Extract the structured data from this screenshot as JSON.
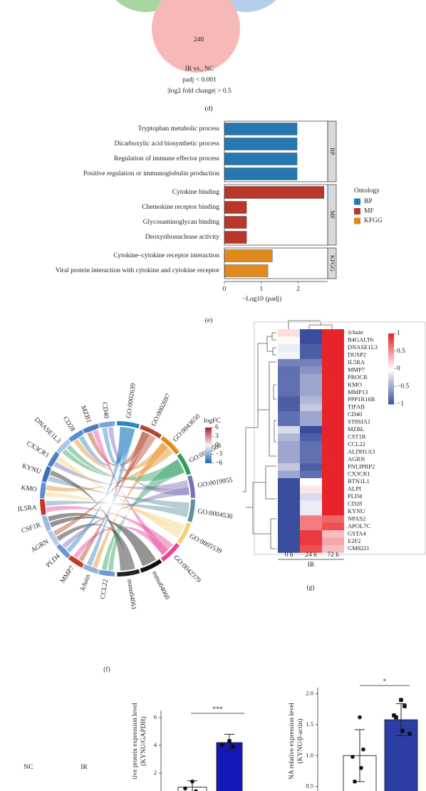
{
  "chart_data": [
    {
      "type": "venn",
      "values": [
        240
      ],
      "notes": [
        "IR vs., NC",
        "padj < 0.001",
        "|log2 fold change| > 0.5"
      ],
      "panel_label": "(d)"
    },
    {
      "type": "bar",
      "orientation": "horizontal",
      "categories": [
        "Tryptophan metabolic process",
        "Dicarboxylic acid biosynthetic process",
        "Regulation of immune effector process",
        "Positive regulation or immunoglobulin production",
        "Cytokine binding",
        "Chemokine receptor binding",
        "Glycosaminoglycan binding",
        "Deoxyribonuclease activity",
        "Cytokine–cytokine receptor interaction",
        "Viral protein interaction with cytokine and cytokine receptor"
      ],
      "groups": [
        "BP",
        "BP",
        "BP",
        "BP",
        "MF",
        "MF",
        "MF",
        "MF",
        "KFGG",
        "KFGG"
      ],
      "values": [
        1.97,
        1.97,
        1.97,
        1.97,
        2.7,
        0.6,
        0.6,
        0.6,
        1.3,
        1.18
      ],
      "legend": {
        "title": "Ontology",
        "items": [
          {
            "name": "BP",
            "color": "#2678b2"
          },
          {
            "name": "MF",
            "color": "#b8362a"
          },
          {
            "name": "KFGG",
            "color": "#e08a1e"
          }
        ]
      },
      "xlabel": "−Log10 (padj)",
      "xlim": [
        0,
        2.8
      ],
      "xticks": [
        0,
        1,
        2
      ],
      "panel_label": "(e)"
    },
    {
      "type": "chord",
      "genes": [
        {
          "name": "CD40",
          "color": "#7aa6d6"
        },
        {
          "name": "MZB1",
          "color": "#4a7fc1"
        },
        {
          "name": "CD28",
          "color": "#5b8fd0"
        },
        {
          "name": "DNASE1L3",
          "color": "#a9c4e6"
        },
        {
          "name": "CX3CR1",
          "color": "#4f7fc0"
        },
        {
          "name": "KYNU",
          "color": "#3d6fb5"
        },
        {
          "name": "KMO",
          "color": "#5e90cf"
        },
        {
          "name": "IL5RA",
          "color": "#c0392b"
        },
        {
          "name": "CSF1R",
          "color": "#9dbbe2"
        },
        {
          "name": "AGRN",
          "color": "#b5cbe8"
        },
        {
          "name": "PLD4",
          "color": "#6c98d2"
        },
        {
          "name": "MMP7",
          "color": "#c23b2e"
        },
        {
          "name": "Jchain",
          "color": "#8fb2de"
        },
        {
          "name": "CCL22",
          "color": "#6e9ad3"
        }
      ],
      "terms": [
        {
          "name": "GO:0002639",
          "color": "#2e86c1"
        },
        {
          "name": "GO:0002697",
          "color": "#b3472f"
        },
        {
          "name": "GO:0043650",
          "color": "#e68a1c"
        },
        {
          "name": "GO:0006568",
          "color": "#2f9e5f"
        },
        {
          "name": "GO:0019955",
          "color": "#7b6fb5"
        },
        {
          "name": "GO:0004536",
          "color": "#5d8f9f"
        },
        {
          "name": "GO:0005539",
          "color": "#f3d27a"
        },
        {
          "name": "GO:0042379",
          "color": "#e8479a"
        },
        {
          "name": "mmu04060",
          "color": "#111111"
        },
        {
          "name": "mmu04061",
          "color": "#222222"
        }
      ],
      "legend": {
        "title": "logFC",
        "ticks": [
          6,
          3,
          0,
          {
            "value": -3,
            "label": "−3"
          },
          {
            "value": -6,
            "label": "−6"
          }
        ]
      },
      "panel_label": "(f)"
    },
    {
      "type": "heatmap",
      "rows": [
        "Jchain",
        "B4GALT6",
        "DNASE1L3",
        "DUSP2",
        "IL5RA",
        "MMP7",
        "PROCR",
        "KMO",
        "MMP13",
        "PPP1R16B",
        "TIFAB",
        "CD40",
        "ST8SIA1",
        "MZBL",
        "CST1R",
        "CCL22",
        "ALDH1A3",
        "AGRN",
        "PNLIPRP2",
        "CX3CR1",
        "BTN1L1",
        "ALPI",
        "PLD4",
        "CD28",
        "KYNU",
        "NPAS2",
        "APOL7C",
        "GSTA4",
        "E2F2",
        "GM8221"
      ],
      "columns": [
        "0 h",
        "24 h",
        "72 h"
      ],
      "column_group": "IR",
      "values": [
        [
          0.15,
          -1,
          1
        ],
        [
          0.02,
          -1,
          1
        ],
        [
          -0.1,
          -0.9,
          1
        ],
        [
          -0.05,
          -0.9,
          1
        ],
        [
          -0.7,
          -0.7,
          1
        ],
        [
          -0.8,
          -0.6,
          1
        ],
        [
          -0.8,
          -0.5,
          1
        ],
        [
          -0.8,
          -0.5,
          1
        ],
        [
          -0.8,
          -0.5,
          1
        ],
        [
          -0.9,
          -0.4,
          1
        ],
        [
          -0.9,
          -0.3,
          1
        ],
        [
          -0.8,
          -0.5,
          1
        ],
        [
          -0.8,
          -0.5,
          1
        ],
        [
          -0.2,
          -1,
          1
        ],
        [
          -0.4,
          -0.9,
          1
        ],
        [
          -0.5,
          -0.8,
          1
        ],
        [
          -0.5,
          -0.8,
          1
        ],
        [
          -0.5,
          -0.8,
          1
        ],
        [
          -0.3,
          -0.9,
          1
        ],
        [
          -0.5,
          -0.8,
          1
        ],
        [
          -1,
          0,
          1
        ],
        [
          -1,
          0.12,
          1
        ],
        [
          -1,
          -0.2,
          1
        ],
        [
          -1,
          -0.1,
          1
        ],
        [
          -1,
          -0.1,
          1
        ],
        [
          -1,
          0.6,
          0.7
        ],
        [
          -1,
          0.6,
          0.8
        ],
        [
          -1,
          0.9,
          0.3
        ],
        [
          -1,
          0.9,
          0.4
        ],
        [
          -1,
          0.8,
          0.3
        ]
      ],
      "colors": {
        "low": "#3a4c9c",
        "mid": "#ffffff",
        "high": "#e8232a"
      },
      "colorbar_ticks": [
        1,
        0.5,
        0,
        {
          "value": -0.5,
          "label": "−0.5"
        },
        {
          "value": -1,
          "label": "−1"
        }
      ],
      "panel_label": "(g)"
    },
    {
      "type": "bar",
      "orientation": "vertical",
      "categories": [
        null,
        null
      ],
      "values": [
        1.0,
        4.2
      ],
      "errors": [
        0.45,
        0.6
      ],
      "points": [
        [
          1.4,
          0.7,
          0.9
        ],
        [
          4.3,
          3.9,
          4.05
        ]
      ],
      "colors": [
        "#ffffff",
        "#1418b8"
      ],
      "ylabel": [
        "tive protein expression level",
        "(KYNU/GAPDH)"
      ],
      "ylim": [
        0,
        6.5
      ],
      "yticks": [
        2,
        4,
        6
      ],
      "significance": "***"
    },
    {
      "type": "bar",
      "orientation": "vertical",
      "categories": [
        null,
        null
      ],
      "values": [
        1.0,
        1.58
      ],
      "errors": [
        0.42,
        0.26
      ],
      "points": [
        [
          1.62,
          1.1,
          0.98,
          0.8,
          0.58
        ],
        [
          1.9,
          1.8,
          1.65,
          1.4,
          1.62,
          1.35
        ]
      ],
      "colors": [
        "#ffffff",
        "#2b3ea6"
      ],
      "ylabel": [
        "NA relative expression level",
        "(KYNU/β-actin)"
      ],
      "ylim": [
        0,
        2.1
      ],
      "yticks": [
        {
          "value": 0.5,
          "label": "0.5"
        },
        {
          "value": 1.0,
          "label": "1.0"
        },
        {
          "value": 1.5,
          "label": "1.5"
        },
        {
          "value": 2.0,
          "label": "2.0"
        }
      ],
      "significance": "*"
    }
  ],
  "extra_labels": [
    "NC",
    "IR"
  ]
}
